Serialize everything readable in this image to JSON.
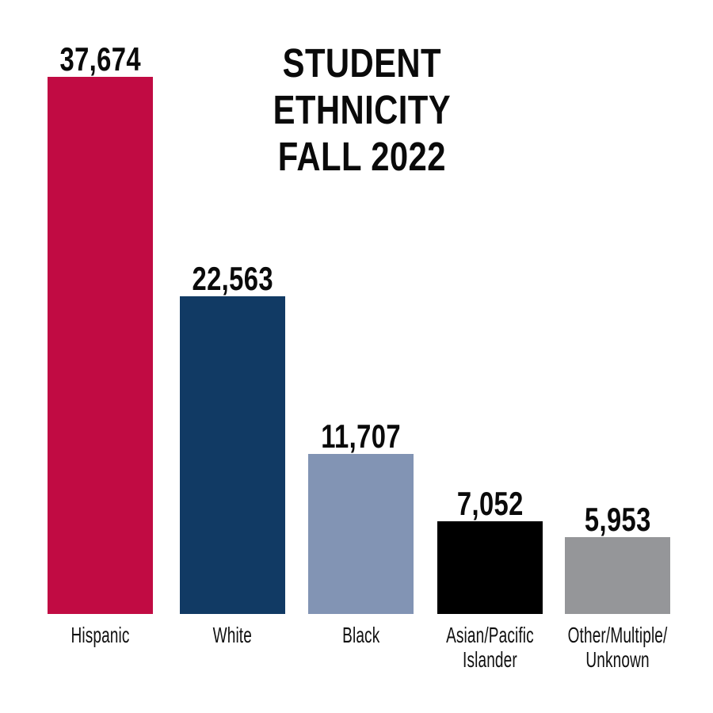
{
  "page": {
    "background_color": "#FFFFFF"
  },
  "title": {
    "line1": "STUDENT",
    "line2": "ETHNICITY",
    "line3": "FALL 2022",
    "color": "#0A0A0A"
  },
  "chart_data": {
    "type": "bar",
    "title": "STUDENT ETHNICITY FALL 2022",
    "categories": [
      "Hispanic",
      "White",
      "Black",
      "Asian/Pacific Islander",
      "Other/Multiple/Unknown"
    ],
    "values": [
      37674,
      22563,
      11707,
      7052,
      5953
    ],
    "value_labels": [
      "37,674",
      "22,563",
      "11,707",
      "7,052",
      "5,953"
    ],
    "category_label_lines": [
      [
        "Hispanic"
      ],
      [
        "White"
      ],
      [
        "Black"
      ],
      [
        "Asian/Pacific",
        "Islander"
      ],
      [
        "Other/Multiple/",
        "Unknown"
      ]
    ],
    "bar_colors": [
      "#C10B43",
      "#113A64",
      "#8294B4",
      "#000000",
      "#959699"
    ],
    "value_label_color": "#0A0A0A",
    "category_label_color": "#101010",
    "xlabel": "",
    "ylabel": "",
    "ylim": [
      0,
      37674
    ],
    "grid": false,
    "legend": "none",
    "axes_visible": false,
    "value_label_position": "above-bar"
  }
}
